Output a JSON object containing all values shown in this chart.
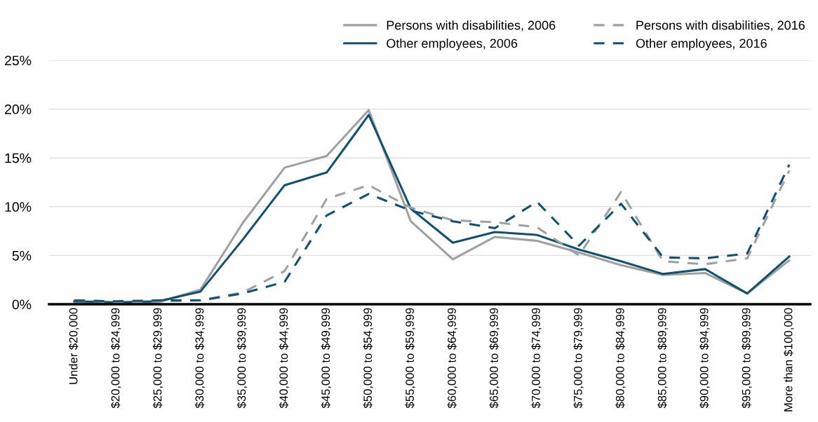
{
  "chart_data": {
    "type": "line",
    "categories": [
      "Under $20,000",
      "$20,000 to $24,999",
      "$25,000 to $29,999",
      "$30,000 to $34,999",
      "$35,000 to $39,999",
      "$40,000 to $44,999",
      "$45,000 to $49,999",
      "$50,000 to $54,999",
      "$55,000 to $59,999",
      "$60,000 to $64,999",
      "$65,000 to $69,999",
      "$70,000 to $74,999",
      "$75,000 to $79,999",
      "$80,000 to $84,999",
      "$85,000 to $89,999",
      "$90,000 to $94,999",
      "$95,000 to $99,999",
      "More than $100,000"
    ],
    "series": [
      {
        "name": "Persons with disabilities, 2006",
        "color": "#a0a0a0",
        "line_style": "solid",
        "values": [
          0.2,
          0.1,
          0.2,
          1.5,
          8.3,
          14.0,
          15.2,
          19.9,
          8.5,
          4.6,
          6.9,
          6.5,
          5.3,
          4.0,
          3.0,
          3.2,
          1.1,
          4.5
        ]
      },
      {
        "name": "Other employees, 2006",
        "color": "#0f5173",
        "line_style": "solid",
        "values": [
          0.3,
          0.2,
          0.3,
          1.3,
          6.6,
          12.2,
          13.5,
          19.4,
          9.8,
          6.3,
          7.4,
          7.1,
          5.6,
          4.4,
          3.1,
          3.6,
          1.1,
          4.9
        ]
      },
      {
        "name": "Persons with disabilities, 2016",
        "color": "#a0a0a0",
        "line_style": "dashed",
        "values": [
          0.4,
          0.2,
          0.3,
          0.4,
          1.2,
          3.4,
          10.8,
          12.2,
          9.9,
          8.6,
          8.4,
          7.9,
          5.0,
          11.5,
          4.4,
          4.1,
          4.7,
          13.7
        ]
      },
      {
        "name": "Other employees, 2016",
        "color": "#0f5173",
        "line_style": "dashed",
        "values": [
          0.4,
          0.3,
          0.4,
          0.4,
          1.1,
          2.3,
          9.1,
          11.3,
          9.6,
          8.5,
          7.8,
          10.5,
          6.0,
          10.3,
          4.8,
          4.7,
          5.2,
          14.3
        ]
      }
    ],
    "ylim": [
      0,
      25
    ],
    "yticks": [
      {
        "value": 0,
        "label": "0%"
      },
      {
        "value": 5,
        "label": "5%"
      },
      {
        "value": 10,
        "label": "10%"
      },
      {
        "value": 15,
        "label": "15%"
      },
      {
        "value": 20,
        "label": "20%"
      },
      {
        "value": 25,
        "label": "25%"
      }
    ],
    "grid": "y",
    "legend": "top right",
    "marker": "none"
  }
}
